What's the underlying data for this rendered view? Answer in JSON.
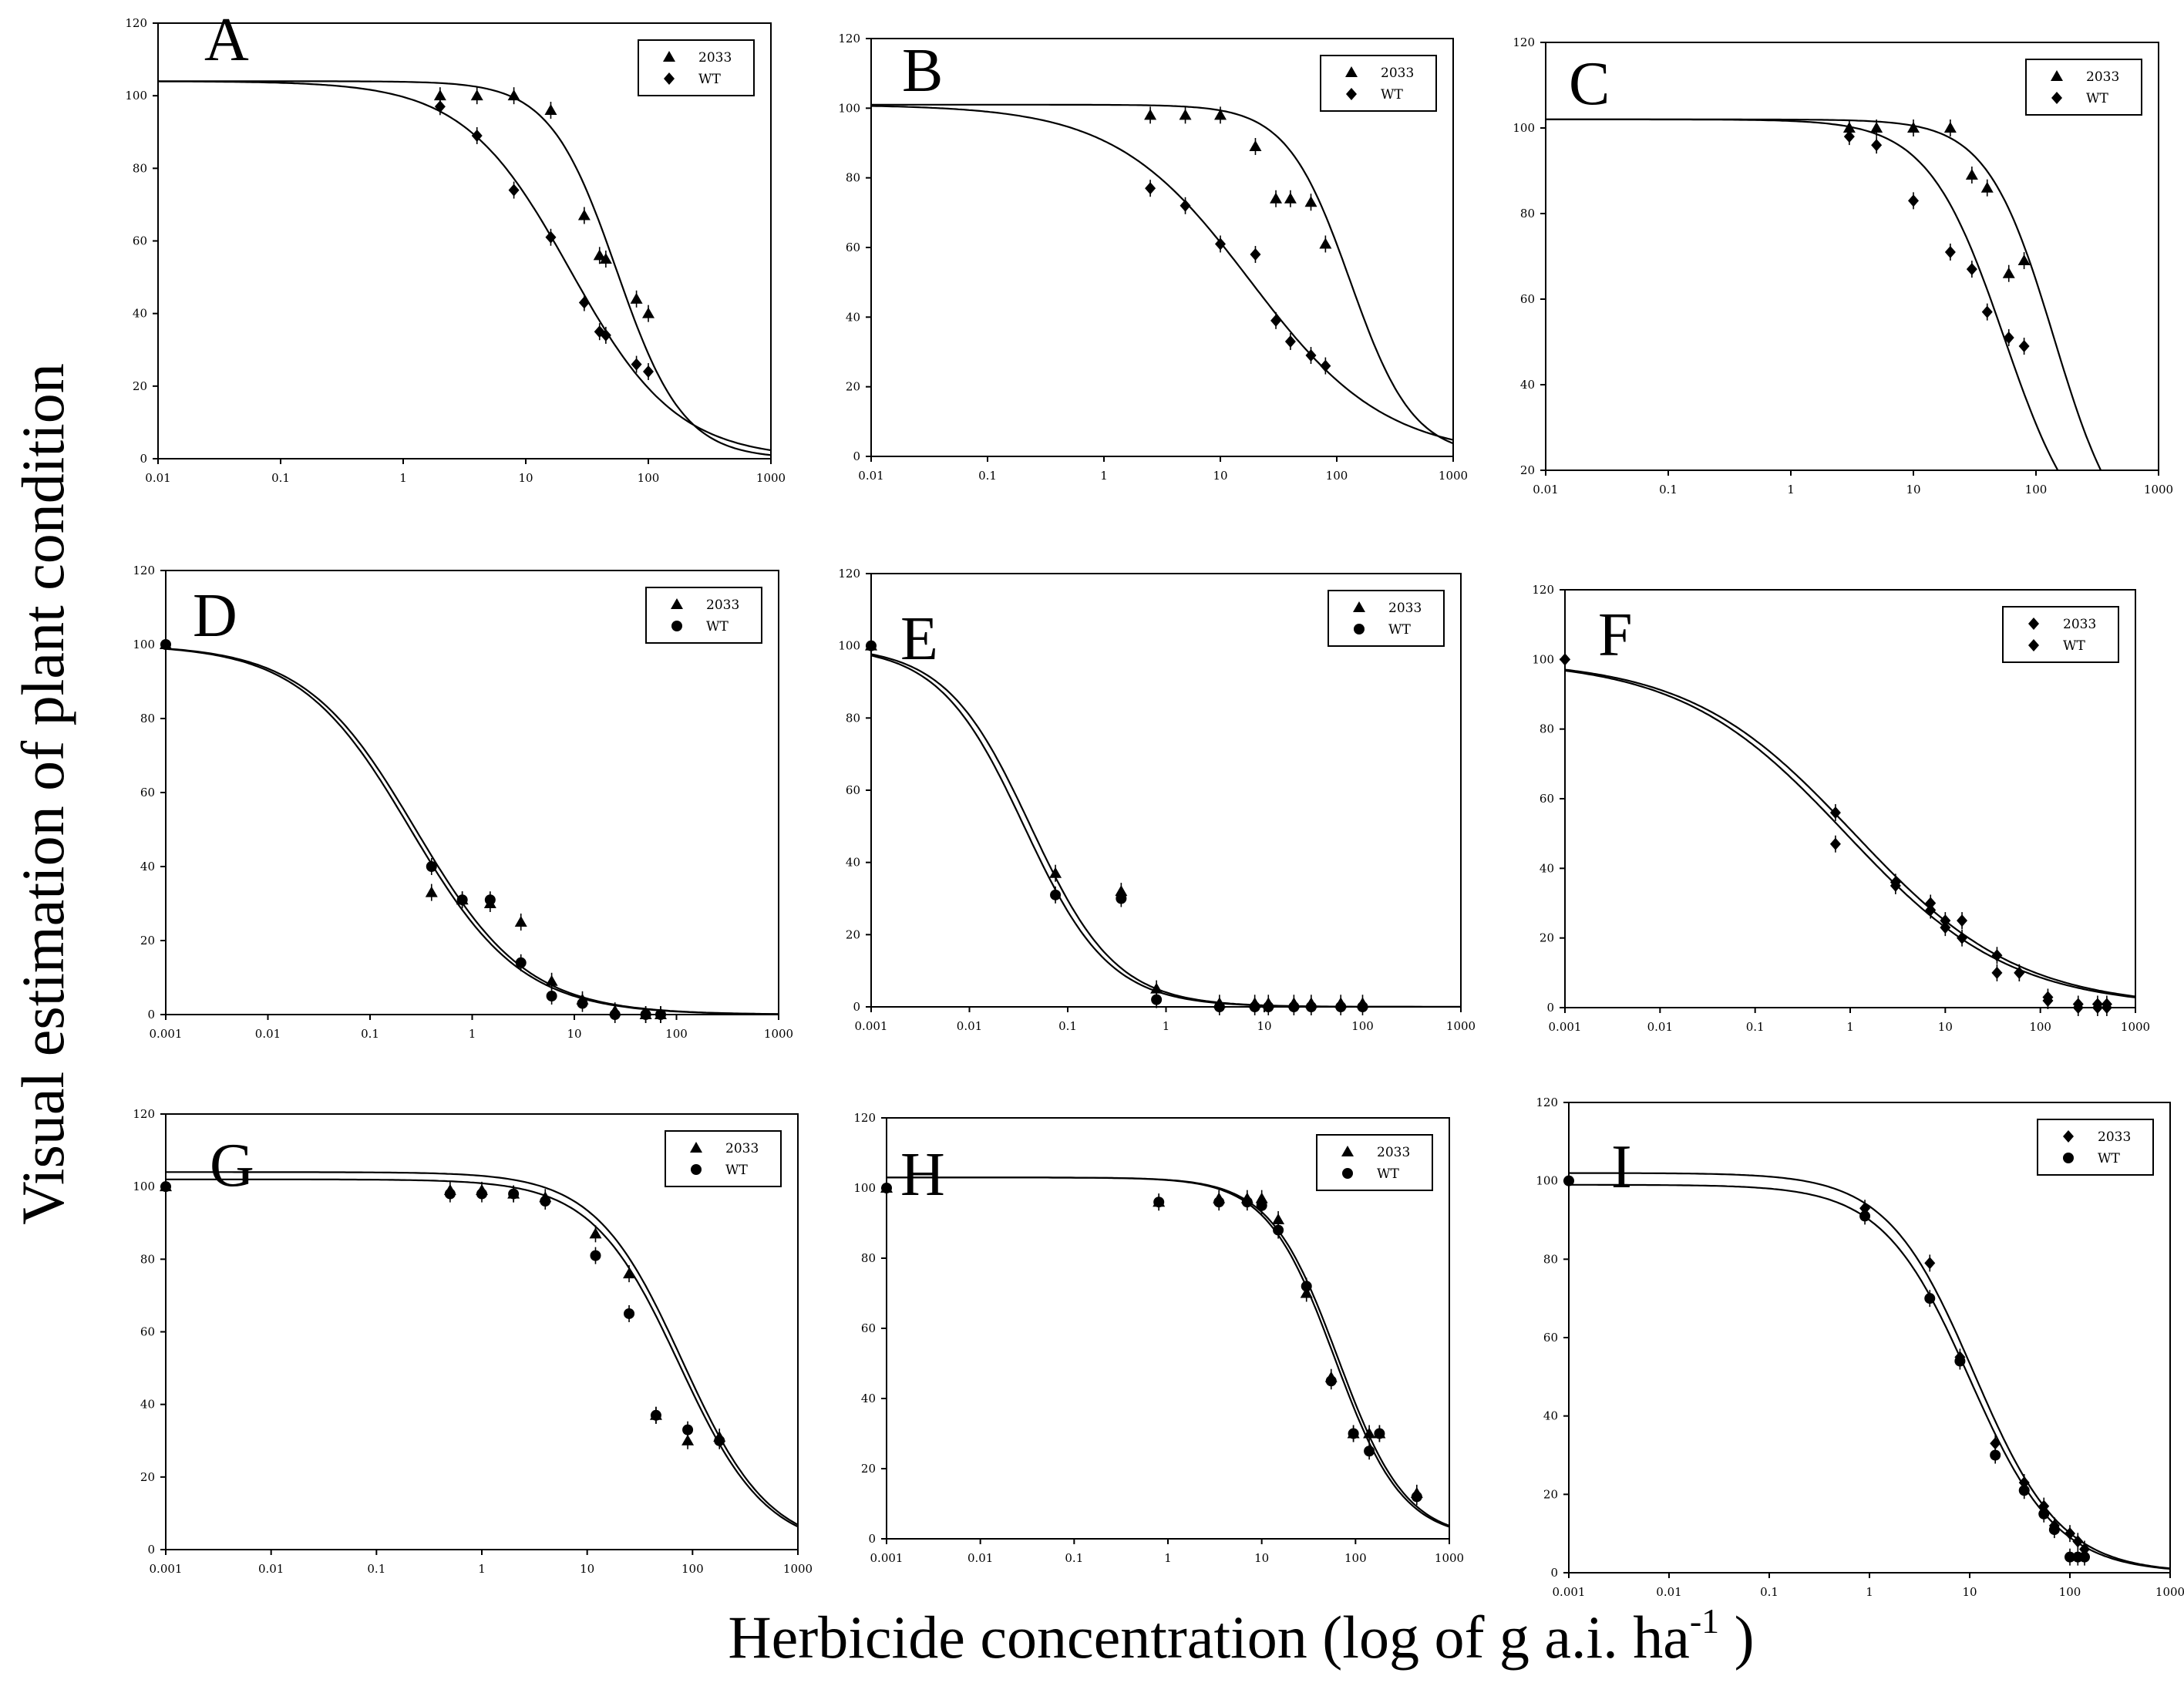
{
  "figure": {
    "ylabel": "Visual estimation of plant condition",
    "xlabel_main": "Herbicide concentration  (log of g a.i. ha",
    "xlabel_sup": "-1",
    "xlabel_close": " )"
  },
  "chart_data": [
    {
      "type": "scatter",
      "panel": "A",
      "xscale": "log",
      "xlim": [
        0.01,
        1000
      ],
      "ylim": [
        0,
        120
      ],
      "xticks": [
        "0.01",
        "0.1",
        "1",
        "10",
        "100",
        "1000"
      ],
      "yticks": [
        "0",
        "20",
        "40",
        "60",
        "80",
        "100",
        "120"
      ],
      "legend_position": "top-right",
      "series": [
        {
          "name": "2033",
          "marker": "triangle",
          "x": [
            2,
            4,
            8,
            16,
            30,
            40,
            45,
            80,
            100
          ],
          "y": [
            100,
            100,
            100,
            96,
            67,
            56,
            55,
            44,
            40
          ],
          "fit": {
            "top": 104,
            "bottom": 0,
            "ec50": 55,
            "hill": 1.6
          }
        },
        {
          "name": "WT",
          "marker": "diamond",
          "x": [
            2,
            4,
            8,
            16,
            30,
            40,
            45,
            80,
            100
          ],
          "y": [
            97,
            89,
            74,
            61,
            43,
            35,
            34,
            26,
            24
          ],
          "fit": {
            "top": 104,
            "bottom": 0,
            "ec50": 23,
            "hill": 1.0
          }
        }
      ]
    },
    {
      "type": "scatter",
      "panel": "B",
      "xscale": "log",
      "xlim": [
        0.01,
        1000
      ],
      "ylim": [
        0,
        120
      ],
      "xticks": [
        "0.01",
        "0.1",
        "1",
        "10",
        "100",
        "1000"
      ],
      "yticks": [
        "0",
        "20",
        "40",
        "60",
        "80",
        "100",
        "120"
      ],
      "legend_position": "top-right",
      "series": [
        {
          "name": "2033",
          "marker": "triangle",
          "x": [
            2.5,
            5,
            10,
            20,
            30,
            40,
            60,
            80
          ],
          "y": [
            98,
            98,
            98,
            89,
            74,
            74,
            73,
            61
          ],
          "fit": {
            "top": 101,
            "bottom": 0,
            "ec50": 130,
            "hill": 1.6
          }
        },
        {
          "name": "WT",
          "marker": "diamond",
          "x": [
            2.5,
            5,
            10,
            20,
            30,
            40,
            60,
            80
          ],
          "y": [
            77,
            72,
            61,
            58,
            39,
            33,
            29,
            26
          ],
          "fit": {
            "top": 101,
            "bottom": 0,
            "ec50": 18,
            "hill": 0.75
          }
        }
      ]
    },
    {
      "type": "scatter",
      "panel": "C",
      "xscale": "log",
      "xlim": [
        0.01,
        1000
      ],
      "ylim": [
        20,
        120
      ],
      "xticks": [
        "0.01",
        "0.1",
        "1",
        "10",
        "100",
        "1000"
      ],
      "yticks": [
        "20",
        "40",
        "60",
        "80",
        "100",
        "120"
      ],
      "legend_position": "top-right",
      "series": [
        {
          "name": "2033",
          "marker": "triangle",
          "x": [
            3,
            5,
            10,
            20,
            30,
            40,
            60,
            80
          ],
          "y": [
            100,
            100,
            100,
            100,
            89,
            86,
            66,
            69
          ],
          "fit": {
            "top": 102,
            "bottom": 0,
            "ec50": 140,
            "hill": 1.6
          }
        },
        {
          "name": "WT",
          "marker": "diamond",
          "x": [
            3,
            5,
            10,
            20,
            30,
            40,
            60,
            80
          ],
          "y": [
            98,
            96,
            83,
            71,
            67,
            57,
            51,
            49
          ],
          "fit": {
            "top": 102,
            "bottom": 0,
            "ec50": 55,
            "hill": 1.4
          }
        }
      ]
    },
    {
      "type": "scatter",
      "panel": "D",
      "xscale": "log",
      "xlim": [
        0.001,
        1000
      ],
      "ylim": [
        0,
        120
      ],
      "xticks": [
        "0.001",
        "0.01",
        "0.1",
        "1",
        "10",
        "100",
        "1000"
      ],
      "yticks": [
        "0",
        "20",
        "40",
        "60",
        "80",
        "100",
        "120"
      ],
      "legend_position": "top-right",
      "series": [
        {
          "name": "2033",
          "marker": "triangle",
          "x": [
            0.001,
            0.4,
            0.8,
            1.5,
            3,
            6,
            12,
            25,
            50,
            70
          ],
          "y": [
            100,
            33,
            31,
            30,
            25,
            9,
            4,
            1,
            0,
            0
          ],
          "fit": {
            "top": 100,
            "bottom": 0,
            "ec50": 0.28,
            "hill": 0.8
          }
        },
        {
          "name": "WT",
          "marker": "circle",
          "x": [
            0.001,
            0.4,
            0.8,
            1.5,
            3,
            6,
            12,
            25,
            50,
            70
          ],
          "y": [
            100,
            40,
            31,
            31,
            14,
            5,
            3,
            0,
            0,
            0
          ],
          "fit": {
            "top": 100,
            "bottom": 0,
            "ec50": 0.25,
            "hill": 0.8
          }
        }
      ]
    },
    {
      "type": "scatter",
      "panel": "E",
      "xscale": "log",
      "xlim": [
        0.001,
        1000
      ],
      "ylim": [
        0,
        120
      ],
      "xticks": [
        "0.001",
        "0.01",
        "0.1",
        "1",
        "10",
        "100",
        "1000"
      ],
      "yticks": [
        "0",
        "20",
        "40",
        "60",
        "80",
        "100",
        "120"
      ],
      "legend_position": "top-right",
      "series": [
        {
          "name": "2033",
          "marker": "triangle",
          "x": [
            0.001,
            0.075,
            0.35,
            0.8,
            3.5,
            8,
            11,
            20,
            30,
            60,
            100
          ],
          "y": [
            100,
            37,
            32,
            5,
            1,
            1,
            1,
            1,
            1,
            1,
            1
          ],
          "fit": {
            "top": 100,
            "bottom": 0,
            "ec50": 0.042,
            "hill": 1.0
          }
        },
        {
          "name": "WT",
          "marker": "circle",
          "x": [
            0.001,
            0.075,
            0.35,
            0.8,
            3.5,
            8,
            11,
            20,
            30,
            60,
            100
          ],
          "y": [
            100,
            31,
            30,
            2,
            0,
            0,
            0,
            0,
            0,
            0,
            0
          ],
          "fit": {
            "top": 100,
            "bottom": 0,
            "ec50": 0.036,
            "hill": 1.0
          }
        }
      ]
    },
    {
      "type": "scatter",
      "panel": "F",
      "xscale": "log",
      "xlim": [
        0.001,
        1000
      ],
      "ylim": [
        0,
        120
      ],
      "xticks": [
        "0.001",
        "0.01",
        "0.1",
        "1",
        "10",
        "100",
        "1000"
      ],
      "yticks": [
        "0",
        "20",
        "40",
        "60",
        "80",
        "100",
        "120"
      ],
      "legend_position": "top-right",
      "series": [
        {
          "name": "2033",
          "marker": "diamond",
          "x": [
            0.001,
            0.7,
            3,
            7,
            10,
            15,
            35,
            60,
            120,
            250,
            400,
            500
          ],
          "y": [
            100,
            56,
            36,
            30,
            25,
            25,
            15,
            10,
            3,
            1,
            1,
            1
          ],
          "fit": {
            "top": 100,
            "bottom": 0,
            "ec50": 1.1,
            "hill": 0.5
          }
        },
        {
          "name": "WT",
          "marker": "diamond",
          "x": [
            0.001,
            0.7,
            3,
            7,
            10,
            15,
            35,
            60,
            120,
            250,
            400,
            500
          ],
          "y": [
            100,
            47,
            35,
            28,
            23,
            20,
            10,
            10,
            2,
            0,
            0,
            0
          ],
          "fit": {
            "top": 100,
            "bottom": 0,
            "ec50": 0.9,
            "hill": 0.5
          }
        }
      ]
    },
    {
      "type": "scatter",
      "panel": "G",
      "xscale": "log",
      "xlim": [
        0.001,
        1000
      ],
      "ylim": [
        0,
        120
      ],
      "xticks": [
        "0.001",
        "0.01",
        "0.1",
        "1",
        "10",
        "100",
        "1000"
      ],
      "yticks": [
        "0",
        "20",
        "40",
        "60",
        "80",
        "100",
        "120"
      ],
      "legend_position": "top-right",
      "series": [
        {
          "name": "2033",
          "marker": "triangle",
          "x": [
            0.001,
            0.5,
            1,
            2,
            4,
            12,
            25,
            45,
            90,
            180
          ],
          "y": [
            100,
            99,
            99,
            98,
            97,
            87,
            76,
            37,
            30,
            31
          ],
          "fit": {
            "top": 104,
            "bottom": 0,
            "ec50": 80,
            "hill": 1.05
          }
        },
        {
          "name": "WT",
          "marker": "circle",
          "x": [
            0.001,
            0.5,
            1,
            2,
            4,
            12,
            25,
            45,
            90,
            180
          ],
          "y": [
            100,
            98,
            98,
            98,
            96,
            81,
            65,
            37,
            33,
            30
          ],
          "fit": {
            "top": 102,
            "bottom": 0,
            "ec50": 75,
            "hill": 1.05
          }
        }
      ]
    },
    {
      "type": "scatter",
      "panel": "H",
      "xscale": "log",
      "xlim": [
        0.001,
        1000
      ],
      "ylim": [
        0,
        120
      ],
      "xticks": [
        "0.001",
        "0.01",
        "0.1",
        "1",
        "10",
        "100",
        "1000"
      ],
      "yticks": [
        "0",
        "20",
        "40",
        "60",
        "80",
        "100",
        "120"
      ],
      "legend_position": "top-right",
      "series": [
        {
          "name": "2033",
          "marker": "triangle",
          "x": [
            0.001,
            0.8,
            3.5,
            7,
            10,
            15,
            30,
            55,
            95,
            140,
            180,
            450
          ],
          "y": [
            100,
            96,
            97,
            97,
            97,
            91,
            70,
            46,
            30,
            30,
            30,
            13
          ],
          "fit": {
            "top": 103,
            "bottom": 0,
            "ec50": 65,
            "hill": 1.2
          }
        },
        {
          "name": "WT",
          "marker": "circle",
          "x": [
            0.001,
            0.8,
            3.5,
            7,
            10,
            15,
            30,
            55,
            95,
            140,
            180,
            450
          ],
          "y": [
            100,
            96,
            96,
            96,
            95,
            88,
            72,
            45,
            30,
            25,
            30,
            12
          ],
          "fit": {
            "top": 103,
            "bottom": 0,
            "ec50": 60,
            "hill": 1.2
          }
        }
      ]
    },
    {
      "type": "scatter",
      "panel": "I",
      "xscale": "log",
      "xlim": [
        0.001,
        1000
      ],
      "ylim": [
        0,
        120
      ],
      "xticks": [
        "0.001",
        "0.01",
        "0.1",
        "1",
        "10",
        "100",
        "1000"
      ],
      "yticks": [
        "0",
        "20",
        "40",
        "60",
        "80",
        "100",
        "120"
      ],
      "legend_position": "top-right",
      "series": [
        {
          "name": "2033",
          "marker": "diamond",
          "x": [
            0.001,
            0.9,
            4,
            8,
            18,
            35,
            55,
            70,
            100,
            120,
            140
          ],
          "y": [
            100,
            93,
            79,
            55,
            33,
            23,
            17,
            12,
            10,
            8,
            6
          ],
          "fit": {
            "top": 102,
            "bottom": 0,
            "ec50": 11,
            "hill": 1.0
          }
        },
        {
          "name": "WT",
          "marker": "circle",
          "x": [
            0.001,
            0.9,
            4,
            8,
            18,
            35,
            55,
            70,
            100,
            120,
            140
          ],
          "y": [
            100,
            91,
            70,
            54,
            30,
            21,
            15,
            11,
            4,
            4,
            4
          ],
          "fit": {
            "top": 99,
            "bottom": 0,
            "ec50": 10,
            "hill": 1.0
          }
        }
      ]
    }
  ]
}
